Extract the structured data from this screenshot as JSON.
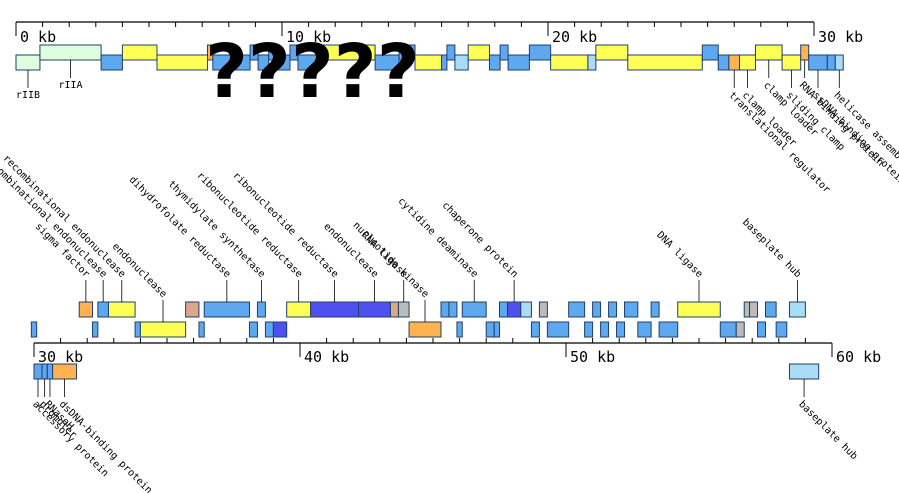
{
  "overlay_text": "?????",
  "colors": {
    "structural_fill": "#ffff55",
    "enzyme_fill": "#5ea8ef",
    "nucleotide_fill": "#5050f0",
    "early_fill": "#ddffdd",
    "light_fill": "#aaddf5",
    "orange_fill": "#ffb24d",
    "tan_fill": "#d9a98a",
    "gray_fill": "#bbbbbb",
    "stroke": "#1f3f6b"
  },
  "tracks": [
    {
      "axis_labels": [
        "0 kb",
        "10 kb",
        "20 kb",
        "30 kb"
      ],
      "genes": [
        {
          "s": 0.0,
          "e": 0.9,
          "strand": "-",
          "color": "early",
          "label": "rIIB"
        },
        {
          "s": 0.9,
          "e": 3.2,
          "strand": "+",
          "color": "early",
          "label": "rIIA"
        },
        {
          "s": 3.2,
          "e": 4.0,
          "strand": "-",
          "color": "enzyme",
          "label": ""
        },
        {
          "s": 4.0,
          "e": 5.3,
          "strand": "+",
          "color": "structural",
          "label": ""
        },
        {
          "s": 5.3,
          "e": 7.2,
          "strand": "-",
          "color": "structural",
          "label": ""
        },
        {
          "s": 7.2,
          "e": 7.4,
          "strand": "+",
          "color": "orange",
          "label": ""
        },
        {
          "s": 7.4,
          "e": 8.8,
          "strand": "-",
          "color": "enzyme",
          "label": ""
        },
        {
          "s": 8.8,
          "e": 9.1,
          "strand": "+",
          "color": "enzyme",
          "label": ""
        },
        {
          "s": 9.1,
          "e": 9.5,
          "strand": "-",
          "color": "enzyme",
          "label": ""
        },
        {
          "s": 9.5,
          "e": 9.8,
          "strand": "+",
          "color": "enzyme",
          "label": ""
        },
        {
          "s": 9.8,
          "e": 10.3,
          "strand": "-",
          "color": "enzyme",
          "label": ""
        },
        {
          "s": 10.3,
          "e": 10.6,
          "strand": "+",
          "color": "enzyme",
          "label": ""
        },
        {
          "s": 10.6,
          "e": 11.4,
          "strand": "-",
          "color": "enzyme",
          "label": ""
        },
        {
          "s": 11.4,
          "e": 13.5,
          "strand": "+",
          "color": "structural",
          "label": ""
        },
        {
          "s": 13.5,
          "e": 14.4,
          "strand": "-",
          "color": "enzyme",
          "label": ""
        },
        {
          "s": 14.4,
          "e": 15.0,
          "strand": "+",
          "color": "enzyme",
          "label": ""
        },
        {
          "s": 15.0,
          "e": 16.0,
          "strand": "-",
          "color": "structural",
          "label": ""
        },
        {
          "s": 16.0,
          "e": 16.2,
          "strand": "-",
          "color": "enzyme",
          "label": ""
        },
        {
          "s": 16.2,
          "e": 16.5,
          "strand": "+",
          "color": "enzyme",
          "label": ""
        },
        {
          "s": 16.5,
          "e": 17.0,
          "strand": "-",
          "color": "light",
          "label": ""
        },
        {
          "s": 17.0,
          "e": 17.8,
          "strand": "+",
          "color": "structural",
          "label": ""
        },
        {
          "s": 17.8,
          "e": 18.2,
          "strand": "-",
          "color": "enzyme",
          "label": ""
        },
        {
          "s": 18.2,
          "e": 18.5,
          "strand": "+",
          "color": "enzyme",
          "label": ""
        },
        {
          "s": 18.5,
          "e": 19.3,
          "strand": "-",
          "color": "enzyme",
          "label": ""
        },
        {
          "s": 19.3,
          "e": 20.1,
          "strand": "+",
          "color": "enzyme",
          "label": ""
        },
        {
          "s": 20.1,
          "e": 21.5,
          "strand": "-",
          "color": "structural",
          "label": ""
        },
        {
          "s": 21.5,
          "e": 21.8,
          "strand": "-",
          "color": "light",
          "label": ""
        },
        {
          "s": 21.8,
          "e": 23.0,
          "strand": "+",
          "color": "structural",
          "label": ""
        },
        {
          "s": 23.0,
          "e": 25.8,
          "strand": "-",
          "color": "structural",
          "label": ""
        },
        {
          "s": 25.8,
          "e": 26.4,
          "strand": "+",
          "color": "enzyme",
          "label": ""
        },
        {
          "s": 26.4,
          "e": 26.8,
          "strand": "-",
          "color": "enzyme",
          "label": ""
        },
        {
          "s": 26.8,
          "e": 27.2,
          "strand": "-",
          "color": "orange",
          "label": "translational regulator"
        },
        {
          "s": 27.2,
          "e": 27.8,
          "strand": "-",
          "color": "structural",
          "label": "clamp loader"
        },
        {
          "s": 27.8,
          "e": 28.8,
          "strand": "+",
          "color": "structural",
          "label": "clamp loader"
        },
        {
          "s": 28.8,
          "e": 29.5,
          "strand": "-",
          "color": "structural",
          "label": "sliding clamp"
        },
        {
          "s": 29.5,
          "e": 29.8,
          "strand": "+",
          "color": "orange",
          "label": "RNA-binding protein"
        },
        {
          "s": 29.8,
          "e": 30.5,
          "strand": "-",
          "color": "enzyme",
          "label": "ssDNA-binding protein"
        },
        {
          "s": 30.5,
          "e": 30.8,
          "strand": "-",
          "color": "enzyme",
          "label": ""
        },
        {
          "s": 30.8,
          "e": 31.1,
          "strand": "-",
          "color": "light",
          "label": "helicase assembler"
        }
      ]
    },
    {
      "axis_labels": [
        "30 kb",
        "40 kb",
        "50 kb",
        "60 kb"
      ],
      "genes": [
        {
          "s": 29.9,
          "e": 30.1,
          "strand": "-",
          "color": "enzyme",
          "label": ""
        },
        {
          "s": 31.7,
          "e": 32.2,
          "strand": "+",
          "color": "orange",
          "label": "sigma factor"
        },
        {
          "s": 32.2,
          "e": 32.4,
          "strand": "-",
          "color": "enzyme",
          "label": ""
        },
        {
          "s": 32.4,
          "e": 32.8,
          "strand": "+",
          "color": "enzyme",
          "label": "recombinational endonuclease"
        },
        {
          "s": 32.8,
          "e": 33.8,
          "strand": "+",
          "color": "structural",
          "label": "recombinational endonuclease"
        },
        {
          "s": 33.8,
          "e": 34.0,
          "strand": "-",
          "color": "enzyme",
          "label": ""
        },
        {
          "s": 34.0,
          "e": 35.7,
          "strand": "-",
          "color": "structural",
          "label": "endonuclease"
        },
        {
          "s": 35.7,
          "e": 36.2,
          "strand": "+",
          "color": "tan",
          "label": ""
        },
        {
          "s": 36.2,
          "e": 36.4,
          "strand": "-",
          "color": "enzyme",
          "label": ""
        },
        {
          "s": 36.4,
          "e": 38.1,
          "strand": "+",
          "color": "enzyme",
          "label": "dihydrofolate reductase"
        },
        {
          "s": 38.1,
          "e": 38.4,
          "strand": "-",
          "color": "enzyme",
          "label": ""
        },
        {
          "s": 38.4,
          "e": 38.7,
          "strand": "+",
          "color": "enzyme",
          "label": "thymidylate synthetase"
        },
        {
          "s": 38.7,
          "e": 39.0,
          "strand": "-",
          "color": "enzyme",
          "label": ""
        },
        {
          "s": 39.0,
          "e": 39.5,
          "strand": "-",
          "color": "nucleotide",
          "label": ""
        },
        {
          "s": 39.5,
          "e": 40.4,
          "strand": "+",
          "color": "structural",
          "label": "ribonucleotide reductase"
        },
        {
          "s": 40.4,
          "e": 42.2,
          "strand": "+",
          "color": "nucleotide",
          "label": "ribonucleotide reductase"
        },
        {
          "s": 42.2,
          "e": 43.4,
          "strand": "+",
          "color": "nucleotide",
          "label": "endonuclease"
        },
        {
          "s": 43.4,
          "e": 43.7,
          "strand": "+",
          "color": "tan",
          "label": ""
        },
        {
          "s": 43.7,
          "e": 44.1,
          "strand": "+",
          "color": "gray",
          "label": "RNA ligase"
        },
        {
          "s": 44.1,
          "e": 45.3,
          "strand": "-",
          "color": "orange",
          "label": "nucleotide kinase"
        },
        {
          "s": 45.3,
          "e": 45.6,
          "strand": "+",
          "color": "enzyme",
          "label": ""
        },
        {
          "s": 45.6,
          "e": 45.9,
          "strand": "+",
          "color": "enzyme",
          "label": ""
        },
        {
          "s": 45.9,
          "e": 46.1,
          "strand": "-",
          "color": "enzyme",
          "label": ""
        },
        {
          "s": 46.1,
          "e": 47.0,
          "strand": "+",
          "color": "enzyme",
          "label": "cytidine deaminase"
        },
        {
          "s": 47.0,
          "e": 47.3,
          "strand": "-",
          "color": "enzyme",
          "label": ""
        },
        {
          "s": 47.3,
          "e": 47.5,
          "strand": "-",
          "color": "enzyme",
          "label": ""
        },
        {
          "s": 47.5,
          "e": 47.8,
          "strand": "+",
          "color": "enzyme",
          "label": ""
        },
        {
          "s": 47.8,
          "e": 48.3,
          "strand": "+",
          "color": "nucleotide",
          "label": "chaperone protein"
        },
        {
          "s": 48.3,
          "e": 48.7,
          "strand": "+",
          "color": "light",
          "label": ""
        },
        {
          "s": 48.7,
          "e": 49.0,
          "strand": "-",
          "color": "enzyme",
          "label": ""
        },
        {
          "s": 49.0,
          "e": 49.3,
          "strand": "+",
          "color": "gray",
          "label": ""
        },
        {
          "s": 49.3,
          "e": 50.1,
          "strand": "-",
          "color": "enzyme",
          "label": ""
        },
        {
          "s": 50.1,
          "e": 50.7,
          "strand": "+",
          "color": "enzyme",
          "label": ""
        },
        {
          "s": 50.7,
          "e": 51.0,
          "strand": "-",
          "color": "enzyme",
          "label": ""
        },
        {
          "s": 51.0,
          "e": 51.3,
          "strand": "+",
          "color": "enzyme",
          "label": ""
        },
        {
          "s": 51.3,
          "e": 51.6,
          "strand": "-",
          "color": "enzyme",
          "label": ""
        },
        {
          "s": 51.6,
          "e": 51.9,
          "strand": "+",
          "color": "enzyme",
          "label": ""
        },
        {
          "s": 51.9,
          "e": 52.2,
          "strand": "-",
          "color": "enzyme",
          "label": ""
        },
        {
          "s": 52.2,
          "e": 52.7,
          "strand": "+",
          "color": "enzyme",
          "label": ""
        },
        {
          "s": 52.7,
          "e": 53.2,
          "strand": "-",
          "color": "enzyme",
          "label": ""
        },
        {
          "s": 53.2,
          "e": 53.5,
          "strand": "+",
          "color": "enzyme",
          "label": ""
        },
        {
          "s": 53.5,
          "e": 54.2,
          "strand": "-",
          "color": "enzyme",
          "label": ""
        },
        {
          "s": 54.2,
          "e": 55.8,
          "strand": "+",
          "color": "structural",
          "label": "DNA ligase"
        },
        {
          "s": 55.8,
          "e": 56.4,
          "strand": "-",
          "color": "enzyme",
          "label": ""
        },
        {
          "s": 56.4,
          "e": 56.7,
          "strand": "-",
          "color": "gray",
          "label": ""
        },
        {
          "s": 56.7,
          "e": 56.9,
          "strand": "+",
          "color": "gray",
          "label": ""
        },
        {
          "s": 56.9,
          "e": 57.2,
          "strand": "+",
          "color": "gray",
          "label": ""
        },
        {
          "s": 57.2,
          "e": 57.5,
          "strand": "-",
          "color": "enzyme",
          "label": ""
        },
        {
          "s": 57.5,
          "e": 57.9,
          "strand": "+",
          "color": "enzyme",
          "label": ""
        },
        {
          "s": 57.9,
          "e": 58.3,
          "strand": "-",
          "color": "enzyme",
          "label": ""
        },
        {
          "s": 58.4,
          "e": 59.0,
          "strand": "+",
          "color": "light",
          "label": "baseplate hub"
        }
      ]
    },
    {
      "axis_labels": [],
      "genes": [
        {
          "s": 60.0,
          "e": 60.3,
          "strand": "-",
          "color": "enzyme",
          "label": "accessory protein"
        },
        {
          "s": 60.3,
          "e": 60.5,
          "strand": "-",
          "color": "enzyme",
          "label": "promoter"
        },
        {
          "s": 60.5,
          "e": 60.7,
          "strand": "-",
          "color": "enzyme",
          "label": "RNaseH"
        },
        {
          "s": 60.7,
          "e": 61.6,
          "strand": "-",
          "color": "orange",
          "label": "dsDNA-binding protein"
        },
        {
          "s": 88.4,
          "e": 89.5,
          "strand": "-",
          "color": "light",
          "label": "baseplate hub"
        }
      ]
    }
  ]
}
